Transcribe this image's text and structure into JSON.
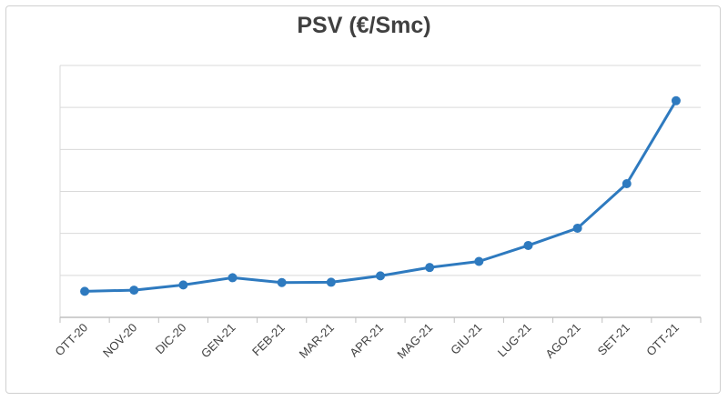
{
  "chart_data": {
    "type": "line",
    "title": "PSV (€/Smc)",
    "xlabel": "",
    "ylabel": "",
    "categories": [
      "OTT-20",
      "NOV-20",
      "DIC-20",
      "GEN-21",
      "FEB-21",
      "MAR-21",
      "APR-21",
      "MAG-21",
      "GIU-21",
      "LUG-21",
      "AGO-21",
      "SET-21",
      "OTT-21"
    ],
    "series": [
      {
        "values": [
          0.155,
          0.162,
          0.193,
          0.236,
          0.207,
          0.209,
          0.247,
          0.297,
          0.333,
          0.428,
          0.531,
          0.796,
          1.29
        ]
      }
    ],
    "ylim": [
      0,
      1.5
    ],
    "grid": true,
    "legend": "none",
    "colors": {
      "line": "#2E7ABF",
      "grid": "#d9d9d9",
      "axis": "#bfbfbf"
    }
  }
}
